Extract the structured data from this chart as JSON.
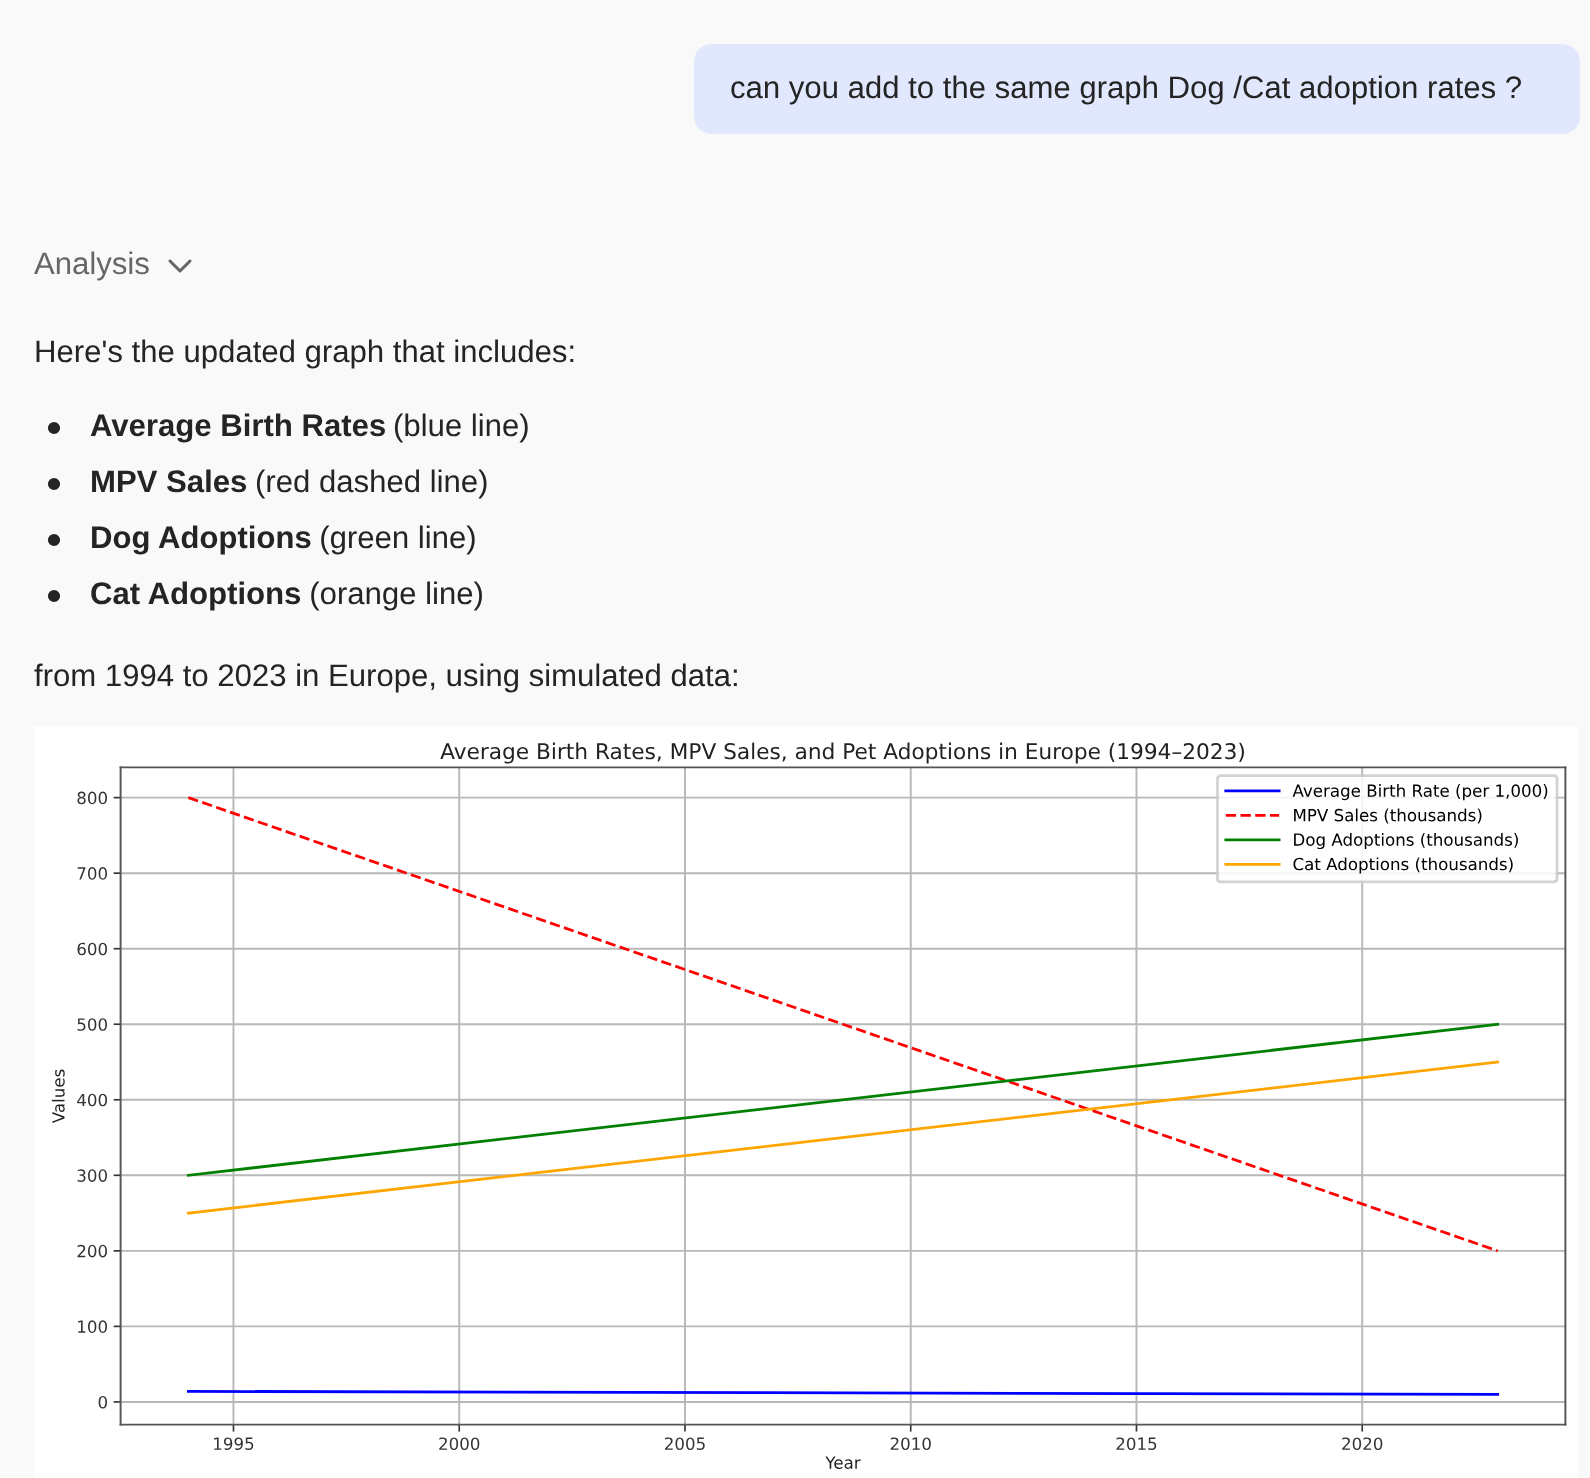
{
  "chart_data": {
    "type": "line",
    "title": "Average Birth Rates, MPV Sales, and Pet Adoptions in Europe (1994–2023)",
    "xlabel": "Year",
    "ylabel": "Values",
    "x": [
      1994,
      2023
    ],
    "series": [
      {
        "name": "Average Birth Rate (per 1,000)",
        "color": "#0000ff",
        "values": [
          14,
          10
        ]
      },
      {
        "name": "MPV Sales (thousands)",
        "color": "#ff0000",
        "values": [
          800,
          200
        ],
        "line_style": "dashed"
      },
      {
        "name": "Dog Adoptions (thousands)",
        "color": "#008000",
        "values": [
          300,
          500
        ]
      },
      {
        "name": "Cat Adoptions (thousands)",
        "color": "#ffa500",
        "values": [
          250,
          450
        ]
      }
    ],
    "xlim": [
      1992.5,
      2024.5
    ],
    "xticks": [
      1995,
      2000,
      2005,
      2010,
      2015,
      2020
    ],
    "ylim": [
      -30,
      840
    ],
    "yticks": [
      0,
      100,
      200,
      300,
      400,
      500,
      600,
      700,
      800
    ],
    "grid": true,
    "legend": "top right",
    "line_style": "solid",
    "annotations": [
      "can you add to the same graph Dog /Cat adoption rates ?",
      "Analysis",
      "Here's the updated graph that includes:",
      "Average Birth Rates (blue line)",
      "MPV Sales (red dashed line)",
      "Dog Adoptions (green line)",
      "Cat Adoptions (orange line)",
      "from 1994 to 2023 in Europe, using simulated data:"
    ]
  }
}
